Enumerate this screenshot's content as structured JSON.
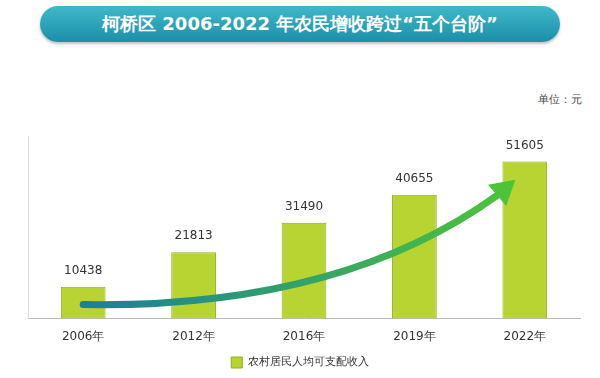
{
  "chart_data": {
    "type": "bar",
    "title": "柯桥区 2006-2022 年农民增收跨过“五个台阶”",
    "y_label": "单位：元",
    "categories": [
      "2006年",
      "2012年",
      "2016年",
      "2019年",
      "2022年"
    ],
    "series": [
      {
        "name": "农村居民人均可支配收入",
        "color": "#b8d433",
        "values": [
          10438,
          21813,
          31490,
          40655,
          51605
        ]
      }
    ],
    "ylim": [
      0,
      60000
    ],
    "grid": false,
    "legend": "bottom",
    "data_labels": true,
    "tick_labels": "x"
  }
}
